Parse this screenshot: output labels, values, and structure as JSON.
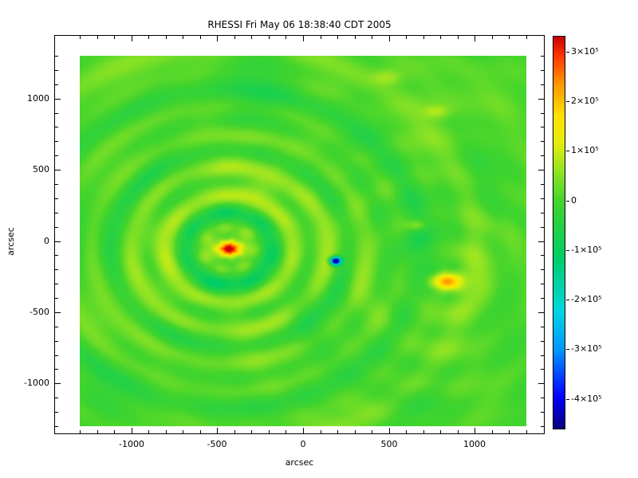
{
  "chart_data": {
    "type": "heatmap",
    "title": "RHESSI Fri May 06 18:38:40 CDT 2005",
    "xlabel": "arcsec",
    "ylabel": "arcsec",
    "x_range": [
      -1300,
      1300
    ],
    "y_range": [
      -1300,
      1300
    ],
    "x_ticks": {
      "values": [
        -1000,
        -500,
        0,
        500,
        1000
      ],
      "labels": [
        "-1000",
        "-500",
        "0",
        "500",
        "1000"
      ]
    },
    "y_ticks": {
      "values": [
        -1000,
        -500,
        0,
        500,
        1000
      ],
      "labels": [
        "-1000",
        "-500",
        "0",
        "500",
        "1000"
      ]
    },
    "minor_tick_step": 100,
    "grid": false,
    "legend": false,
    "colorbar": {
      "position": "right",
      "min": -460000,
      "max": 330000,
      "ticks": {
        "values": [
          300000,
          200000,
          100000,
          0,
          -100000,
          -200000,
          -300000,
          -400000
        ],
        "labels": [
          "3×10⁵",
          "2×10⁵",
          "1×10⁵",
          "0",
          "-1×10⁵",
          "-2×10⁵",
          "-3×10⁵",
          "-4×10⁵"
        ]
      }
    },
    "colormap_stops": [
      {
        "t": 0.0,
        "rgb": [
          10,
          0,
          125
        ]
      },
      {
        "t": 0.08,
        "rgb": [
          0,
          0,
          255
        ]
      },
      {
        "t": 0.2,
        "rgb": [
          0,
          150,
          255
        ]
      },
      {
        "t": 0.3,
        "rgb": [
          0,
          215,
          225
        ]
      },
      {
        "t": 0.44,
        "rgb": [
          0,
          205,
          100
        ]
      },
      {
        "t": 0.58,
        "rgb": [
          66,
          212,
          45
        ]
      },
      {
        "t": 0.66,
        "rgb": [
          150,
          228,
          35
        ]
      },
      {
        "t": 0.73,
        "rgb": [
          230,
          238,
          10
        ]
      },
      {
        "t": 0.8,
        "rgb": [
          255,
          225,
          0
        ]
      },
      {
        "t": 0.88,
        "rgb": [
          255,
          150,
          0
        ]
      },
      {
        "t": 0.95,
        "rgb": [
          255,
          55,
          0
        ]
      },
      {
        "t": 1.0,
        "rgb": [
          205,
          0,
          0
        ]
      }
    ],
    "description": "RHESSI back-projection dirty map: dominant compact source with concentric sidelobe rings, a weaker source to the lower right, and one deep negative sidelobe",
    "components": [
      {
        "type": "gaussian",
        "x": -430,
        "y": -55,
        "amp": 400000,
        "sx": 85,
        "sy": 62
      },
      {
        "type": "rings",
        "x": -430,
        "y": -55,
        "amp": 85000,
        "wavelength": 215,
        "phase": 1.8,
        "decay": 650,
        "angfreq": 7,
        "angmod": 0.22
      },
      {
        "type": "rings",
        "x": -430,
        "y": -55,
        "amp": 30000,
        "wavelength": 470,
        "phase": 0.3,
        "decay": 1900,
        "angfreq": 4,
        "angmod": 0.35
      },
      {
        "type": "rings",
        "x": -430,
        "y": -55,
        "amp": 19000,
        "wavelength": 950,
        "phase": 2.3,
        "decay": 4500,
        "angfreq": 0,
        "angmod": 0
      },
      {
        "type": "gaussian",
        "x": 840,
        "y": -285,
        "amp": 210000,
        "sx": 95,
        "sy": 58
      },
      {
        "type": "rings",
        "x": 840,
        "y": -285,
        "amp": 21000,
        "wavelength": 260,
        "phase": 0.8,
        "decay": 950,
        "angfreq": 5,
        "angmod": 0.3
      },
      {
        "type": "gaussian",
        "x": 190,
        "y": -140,
        "amp": -560000,
        "sx": 30,
        "sy": 27
      },
      {
        "type": "gaussian",
        "x": 665,
        "y": 110,
        "amp": 90000,
        "sx": 60,
        "sy": 42
      },
      {
        "type": "gaussian",
        "x": 780,
        "y": 910,
        "amp": 70000,
        "sx": 75,
        "sy": 50
      },
      {
        "type": "gaussian",
        "x": 495,
        "y": 1150,
        "amp": 60000,
        "sx": 85,
        "sy": 55
      },
      {
        "type": "mottle",
        "amp": 15000,
        "ax": 150,
        "p1": 0.4,
        "ay": 185,
        "p2": 1.9
      },
      {
        "type": "mottle",
        "amp": 12000,
        "ax": 305,
        "p1": 2.2,
        "ay": 240,
        "p2": 0.3
      },
      {
        "type": "mottle",
        "amp": 9000,
        "ax": 95,
        "p1": 4.0,
        "ay": 520,
        "p2": 2.6
      },
      {
        "type": "offset",
        "amp": 6000
      }
    ]
  }
}
